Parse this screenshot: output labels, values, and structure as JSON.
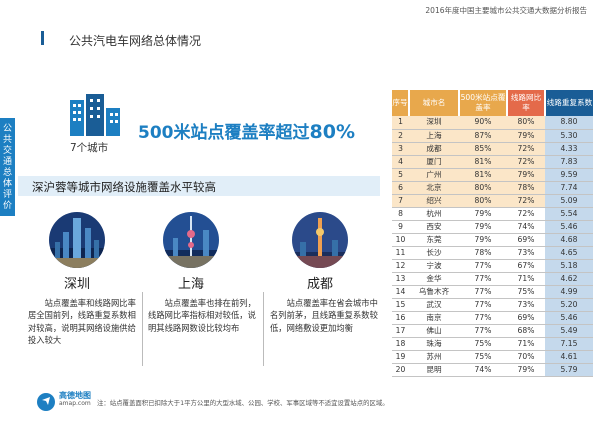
{
  "report_title": "2016年度中国主要城市公共交通大数据分析报告",
  "sidebar_label": [
    "公",
    "共",
    "交",
    "通",
    "总",
    "体",
    "评",
    "价"
  ],
  "header_title": "公共汽电车网络总体情况",
  "city_count_label": "7个城市",
  "headline": {
    "prefix": "500米站点覆盖率超过",
    "value": "80%"
  },
  "subtitle": "深沪蓉等城市网络设施覆盖水平较高",
  "cities": [
    {
      "name": "深圳",
      "desc": "站点覆盖率和线路网比率居全国前列，线路重复系数相对较高，说明其网络设施供给投入较大"
    },
    {
      "name": "上海",
      "desc": "站点覆盖率也排在前列，线路网比率指标相对较低，说明其线路网数设比较均布"
    },
    {
      "name": "成都",
      "desc": "站点覆盖率在省会城市中名列前茅，且线路重复系数较低，网络敷设更加均衡"
    }
  ],
  "table": {
    "headers": [
      "序号",
      "城市名",
      "500米站点覆盖率",
      "线路网比率",
      "线路重复系数"
    ],
    "header_colors": [
      "#e8a84c",
      "#e8a84c",
      "#e8a84c",
      "#e46a4a",
      "#1a5d96"
    ],
    "rows": [
      [
        "1",
        "深圳",
        "90%",
        "80%",
        "8.80"
      ],
      [
        "2",
        "上海",
        "87%",
        "79%",
        "5.30"
      ],
      [
        "3",
        "成都",
        "85%",
        "72%",
        "4.33"
      ],
      [
        "4",
        "厦门",
        "81%",
        "72%",
        "7.83"
      ],
      [
        "5",
        "广州",
        "81%",
        "79%",
        "9.59"
      ],
      [
        "6",
        "北京",
        "80%",
        "78%",
        "7.74"
      ],
      [
        "7",
        "绍兴",
        "80%",
        "72%",
        "5.09"
      ],
      [
        "8",
        "杭州",
        "79%",
        "72%",
        "5.54"
      ],
      [
        "9",
        "西安",
        "79%",
        "74%",
        "5.46"
      ],
      [
        "10",
        "东莞",
        "79%",
        "69%",
        "4.68"
      ],
      [
        "11",
        "长沙",
        "78%",
        "73%",
        "4.65"
      ],
      [
        "12",
        "宁波",
        "77%",
        "67%",
        "5.18"
      ],
      [
        "13",
        "金华",
        "77%",
        "71%",
        "4.62"
      ],
      [
        "14",
        "乌鲁木齐",
        "77%",
        "75%",
        "4.99"
      ],
      [
        "15",
        "武汉",
        "77%",
        "73%",
        "5.20"
      ],
      [
        "16",
        "南京",
        "77%",
        "69%",
        "5.46"
      ],
      [
        "17",
        "佛山",
        "77%",
        "68%",
        "5.49"
      ],
      [
        "18",
        "珠海",
        "75%",
        "71%",
        "7.15"
      ],
      [
        "19",
        "苏州",
        "75%",
        "70%",
        "4.61"
      ],
      [
        "20",
        "昆明",
        "74%",
        "79%",
        "5.79"
      ]
    ],
    "highlighted_rows": 7
  },
  "logo": {
    "name": "高德地图",
    "sub": "amap.com"
  },
  "footnote": "注：站点覆盖面积已扣除大于1平方公里的大型水域、公园、学校、军事区域等不适宜设置站点的区域。",
  "colors": {
    "accent": "#1d7fc2",
    "highlight_row": "#fbe6c8",
    "repeat_col": "#c5d9ec"
  }
}
